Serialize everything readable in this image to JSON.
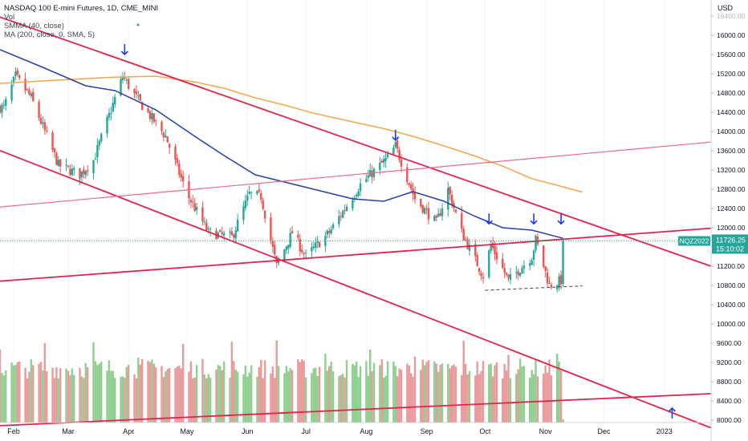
{
  "header": {
    "title": "NASDAQ 100 E-mini Futures, 1D, CME_MINI",
    "indicators": [
      "Vol",
      "SMMA (40, close)",
      "MA (200, close, 0, SMA, 5)"
    ]
  },
  "price_axis": {
    "unit": "USD",
    "ticks": [
      "16400.00",
      "16000.00",
      "15600.00",
      "15200.00",
      "14800.00",
      "14400.00",
      "14000.00",
      "13600.00",
      "13200.00",
      "12800.00",
      "12400.00",
      "12000.00",
      "11600.00",
      "11200.00",
      "10800.00",
      "10400.00",
      "10000.00",
      "9600.00",
      "9200.00",
      "8800.00",
      "8400.00",
      "8000.00"
    ],
    "last_price_badge": {
      "symbol": "NQZ2022",
      "price": "11726.25",
      "countdown": "15:10:02",
      "color": "#26a69a"
    }
  },
  "time_axis": {
    "ticks": [
      "Feb",
      "Mar",
      "Apr",
      "May",
      "Jun",
      "Jul",
      "Aug",
      "Sep",
      "Oct",
      "Nov",
      "Dec",
      "2023"
    ]
  },
  "colors": {
    "up": "#26a69a",
    "down": "#ef5350",
    "vol_up": "#8fcf8f",
    "vol_down": "#e89b9b",
    "smma": "#2a3f9e",
    "sma200": "#f7a54a",
    "trendline": "#e5224b",
    "trendline_light": "#ef6a8a",
    "arrow": "#1b3fe0"
  },
  "chart_data": {
    "type": "candlestick",
    "title": "NASDAQ 100 E-mini Futures, 1D, CME_MINI",
    "ylabel": "USD",
    "ylim": [
      7800,
      16600
    ],
    "x_range": [
      "2022-01-25",
      "2023-01-25"
    ],
    "series_smma": {
      "name": "SMMA (40, close)",
      "points": [
        [
          "2022-01-25",
          15700
        ],
        [
          "2022-02-15",
          15350
        ],
        [
          "2022-03-10",
          14950
        ],
        [
          "2022-03-25",
          14850
        ],
        [
          "2022-04-15",
          14450
        ],
        [
          "2022-05-05",
          13900
        ],
        [
          "2022-05-20",
          13500
        ],
        [
          "2022-06-05",
          13100
        ],
        [
          "2022-06-20",
          12950
        ],
        [
          "2022-07-05",
          12800
        ],
        [
          "2022-07-25",
          12600
        ],
        [
          "2022-08-10",
          12550
        ],
        [
          "2022-08-25",
          12750
        ],
        [
          "2022-09-10",
          12550
        ],
        [
          "2022-09-25",
          12250
        ],
        [
          "2022-10-10",
          12000
        ],
        [
          "2022-10-25",
          11950
        ],
        [
          "2022-11-10",
          11780
        ]
      ]
    },
    "series_sma200": {
      "name": "MA (200, close, 0, SMA, 5)",
      "points": [
        [
          "2022-01-25",
          15000
        ],
        [
          "2022-02-15",
          15050
        ],
        [
          "2022-03-10",
          15100
        ],
        [
          "2022-03-25",
          15130
        ],
        [
          "2022-04-15",
          15150
        ],
        [
          "2022-05-05",
          15030
        ],
        [
          "2022-05-20",
          14900
        ],
        [
          "2022-06-05",
          14700
        ],
        [
          "2022-06-20",
          14550
        ],
        [
          "2022-07-05",
          14380
        ],
        [
          "2022-07-25",
          14200
        ],
        [
          "2022-08-10",
          14060
        ],
        [
          "2022-08-25",
          13900
        ],
        [
          "2022-09-10",
          13700
        ],
        [
          "2022-09-25",
          13500
        ],
        [
          "2022-10-10",
          13280
        ],
        [
          "2022-10-25",
          13020
        ],
        [
          "2022-11-10",
          12850
        ],
        [
          "2022-11-20",
          12740
        ]
      ]
    },
    "price_anchors": [
      [
        "2022-01-27",
        14500
      ],
      [
        "2022-02-02",
        15150
      ],
      [
        "2022-02-10",
        14700
      ],
      [
        "2022-02-24",
        13300
      ],
      [
        "2022-03-07",
        13100
      ],
      [
        "2022-03-14",
        13400
      ],
      [
        "2022-03-29",
        15150
      ],
      [
        "2022-04-05",
        14700
      ],
      [
        "2022-04-20",
        13900
      ],
      [
        "2022-05-01",
        12700
      ],
      [
        "2022-05-12",
        11900
      ],
      [
        "2022-05-24",
        11800
      ],
      [
        "2022-06-02",
        12700
      ],
      [
        "2022-06-08",
        12650
      ],
      [
        "2022-06-16",
        11200
      ],
      [
        "2022-06-24",
        11900
      ],
      [
        "2022-07-01",
        11400
      ],
      [
        "2022-07-13",
        11900
      ],
      [
        "2022-07-29",
        12900
      ],
      [
        "2022-08-12",
        13450
      ],
      [
        "2022-08-16",
        13700
      ],
      [
        "2022-08-26",
        12600
      ],
      [
        "2022-09-06",
        12100
      ],
      [
        "2022-09-12",
        12800
      ],
      [
        "2022-09-19",
        11900
      ],
      [
        "2022-09-30",
        11000
      ],
      [
        "2022-10-04",
        11650
      ],
      [
        "2022-10-13",
        10900
      ],
      [
        "2022-10-25",
        11400
      ],
      [
        "2022-10-27",
        11750
      ],
      [
        "2022-11-03",
        10800
      ],
      [
        "2022-11-09",
        10900
      ],
      [
        "2022-11-10",
        11720
      ]
    ],
    "annotations": {
      "trendlines": [
        {
          "from": [
            "2022-01-22",
            16420
          ],
          "to": [
            "2023-01-25",
            11200
          ]
        },
        {
          "from": [
            "2022-01-22",
            13650
          ],
          "to": [
            "2023-01-25",
            7840
          ]
        },
        {
          "from": [
            "2022-01-22",
            10880
          ],
          "to": [
            "2023-01-25",
            11990
          ]
        },
        {
          "from": [
            "2022-01-22",
            12420
          ],
          "to": [
            "2023-01-25",
            13780
          ]
        },
        {
          "from": [
            "2022-01-22",
            7880
          ],
          "to": [
            "2023-01-25",
            8550
          ]
        }
      ],
      "support_dashed": {
        "from": [
          "2022-10-01",
          10700
        ],
        "to": [
          "2022-11-20",
          10790
        ]
      },
      "down_arrows": [
        [
          "2022-03-30",
          15700
        ],
        [
          "2022-08-16",
          13920
        ],
        [
          "2022-10-03",
          12180
        ],
        [
          "2022-10-26",
          12180
        ],
        [
          "2022-11-09",
          12180
        ]
      ],
      "up_arrow": [
        "2023-01-05",
        8150
      ]
    }
  }
}
